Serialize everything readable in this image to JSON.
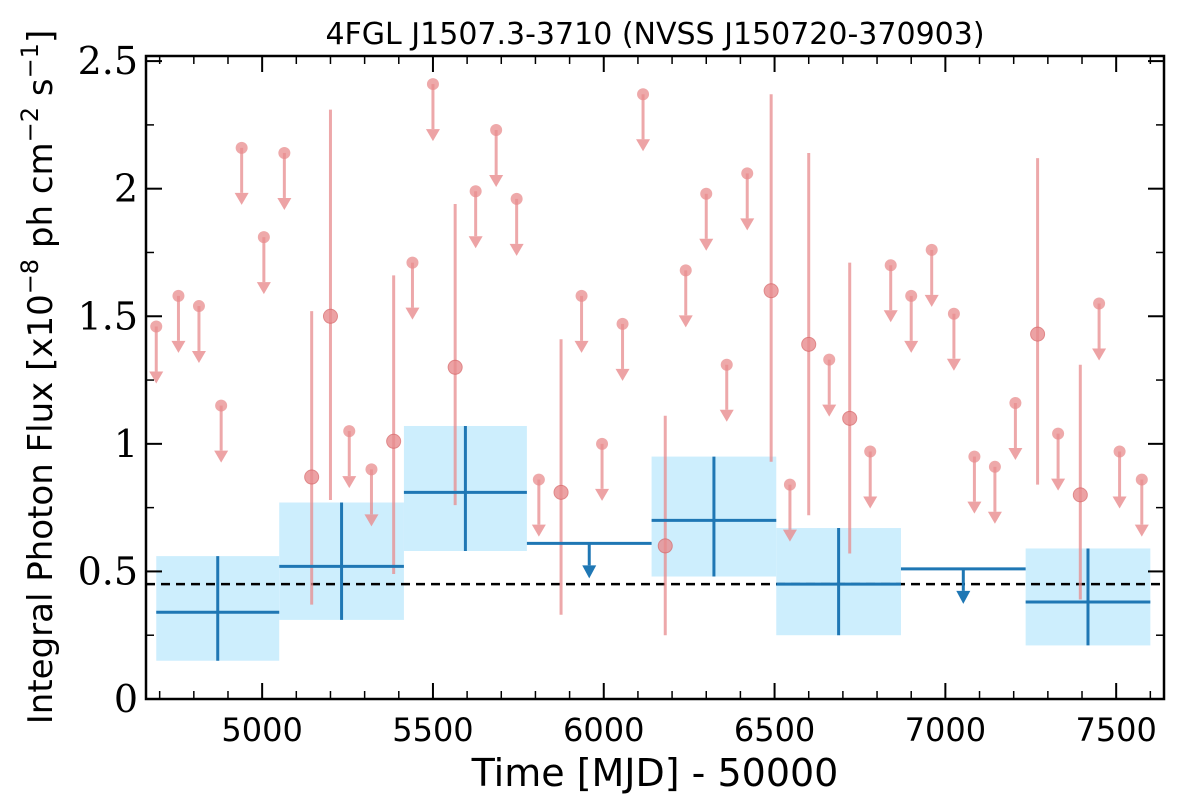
{
  "chart_data": {
    "type": "scatter",
    "title": "4FGL J1507.3-3710 (NVSS J150720-370903)",
    "xlabel": "Time [MJD] - 50000",
    "ylabel": {
      "text": "Integral Photon Flux [x10",
      "exponent_1": "−8",
      "mid": " ph cm",
      "exponent_2": "−2",
      "tail": " s",
      "exponent_3": "−1",
      "close": "]"
    },
    "xlim": [
      4660,
      7640
    ],
    "ylim": [
      0,
      2.52
    ],
    "x_ticks": [
      "5000",
      "5500",
      "6000",
      "6500",
      "7000",
      "7500"
    ],
    "x_tick_values": [
      5000,
      5500,
      6000,
      6500,
      7000,
      7500
    ],
    "y_ticks": [
      "0",
      "0.5",
      "1",
      "1.5",
      "2",
      "2.5"
    ],
    "y_tick_values": [
      0,
      0.5,
      1,
      1.5,
      2,
      2.5
    ],
    "reference_line": {
      "y": 0.45,
      "style": "dashed",
      "color": "#000000"
    },
    "colors": {
      "fine_bins": "#e88c8e",
      "coarse_bins": "#1f77b4",
      "coarse_error_box": "#cdeefd"
    },
    "series": [
      {
        "kind": "fine_detections",
        "points": [
          {
            "x": 5145,
            "y": 0.87,
            "ylo": 0.37,
            "yhi": 1.52
          },
          {
            "x": 5200,
            "y": 1.5,
            "ylo": 0.78,
            "yhi": 2.31
          },
          {
            "x": 5385,
            "y": 1.01,
            "ylo": 0.49,
            "yhi": 1.66
          },
          {
            "x": 5565,
            "y": 1.3,
            "ylo": 0.76,
            "yhi": 1.94
          },
          {
            "x": 5875,
            "y": 0.81,
            "ylo": 0.33,
            "yhi": 1.41
          },
          {
            "x": 6180,
            "y": 0.6,
            "ylo": 0.25,
            "yhi": 1.11
          },
          {
            "x": 6490,
            "y": 1.6,
            "ylo": 0.93,
            "yhi": 2.37
          },
          {
            "x": 6600,
            "y": 1.39,
            "ylo": 0.72,
            "yhi": 2.14
          },
          {
            "x": 6720,
            "y": 1.1,
            "ylo": 0.57,
            "yhi": 1.71
          },
          {
            "x": 7270,
            "y": 1.43,
            "ylo": 0.84,
            "yhi": 2.12
          },
          {
            "x": 7395,
            "y": 0.8,
            "ylo": 0.39,
            "yhi": 1.31
          }
        ]
      },
      {
        "kind": "fine_upper_limits",
        "points": [
          {
            "x": 4690,
            "y": 1.46
          },
          {
            "x": 4755,
            "y": 1.58
          },
          {
            "x": 4815,
            "y": 1.54
          },
          {
            "x": 4880,
            "y": 1.15
          },
          {
            "x": 4940,
            "y": 2.16
          },
          {
            "x": 5005,
            "y": 1.81
          },
          {
            "x": 5065,
            "y": 2.14
          },
          {
            "x": 5255,
            "y": 1.05
          },
          {
            "x": 5320,
            "y": 0.9
          },
          {
            "x": 5440,
            "y": 1.71
          },
          {
            "x": 5500,
            "y": 2.41
          },
          {
            "x": 5625,
            "y": 1.99
          },
          {
            "x": 5685,
            "y": 2.23
          },
          {
            "x": 5745,
            "y": 1.96
          },
          {
            "x": 5810,
            "y": 0.86
          },
          {
            "x": 5935,
            "y": 1.58
          },
          {
            "x": 5995,
            "y": 1.0
          },
          {
            "x": 6055,
            "y": 1.47
          },
          {
            "x": 6115,
            "y": 2.37
          },
          {
            "x": 6240,
            "y": 1.68
          },
          {
            "x": 6300,
            "y": 1.98
          },
          {
            "x": 6360,
            "y": 1.31
          },
          {
            "x": 6420,
            "y": 2.06
          },
          {
            "x": 6545,
            "y": 0.84
          },
          {
            "x": 6660,
            "y": 1.33
          },
          {
            "x": 6780,
            "y": 0.97
          },
          {
            "x": 6840,
            "y": 1.7
          },
          {
            "x": 6900,
            "y": 1.58
          },
          {
            "x": 6960,
            "y": 1.76
          },
          {
            "x": 7025,
            "y": 1.51
          },
          {
            "x": 7085,
            "y": 0.95
          },
          {
            "x": 7145,
            "y": 0.91
          },
          {
            "x": 7205,
            "y": 1.16
          },
          {
            "x": 7330,
            "y": 1.04
          },
          {
            "x": 7450,
            "y": 1.55
          },
          {
            "x": 7510,
            "y": 0.97
          },
          {
            "x": 7575,
            "y": 0.86
          }
        ]
      },
      {
        "kind": "coarse_detections",
        "points": [
          {
            "x0": 4690,
            "x1": 5050,
            "y": 0.34,
            "ylo": 0.15,
            "yhi": 0.56
          },
          {
            "x0": 5050,
            "x1": 5415,
            "y": 0.52,
            "ylo": 0.31,
            "yhi": 0.77
          },
          {
            "x0": 5415,
            "x1": 5775,
            "y": 0.81,
            "ylo": 0.58,
            "yhi": 1.07
          },
          {
            "x0": 6140,
            "x1": 6505,
            "y": 0.7,
            "ylo": 0.48,
            "yhi": 0.95
          },
          {
            "x0": 6505,
            "x1": 6870,
            "y": 0.45,
            "ylo": 0.25,
            "yhi": 0.67
          },
          {
            "x0": 7235,
            "x1": 7600,
            "y": 0.38,
            "ylo": 0.21,
            "yhi": 0.59
          }
        ]
      },
      {
        "kind": "coarse_upper_limits",
        "points": [
          {
            "x0": 5775,
            "x1": 6140,
            "y": 0.61
          },
          {
            "x0": 6870,
            "x1": 7235,
            "y": 0.51
          }
        ]
      }
    ]
  }
}
